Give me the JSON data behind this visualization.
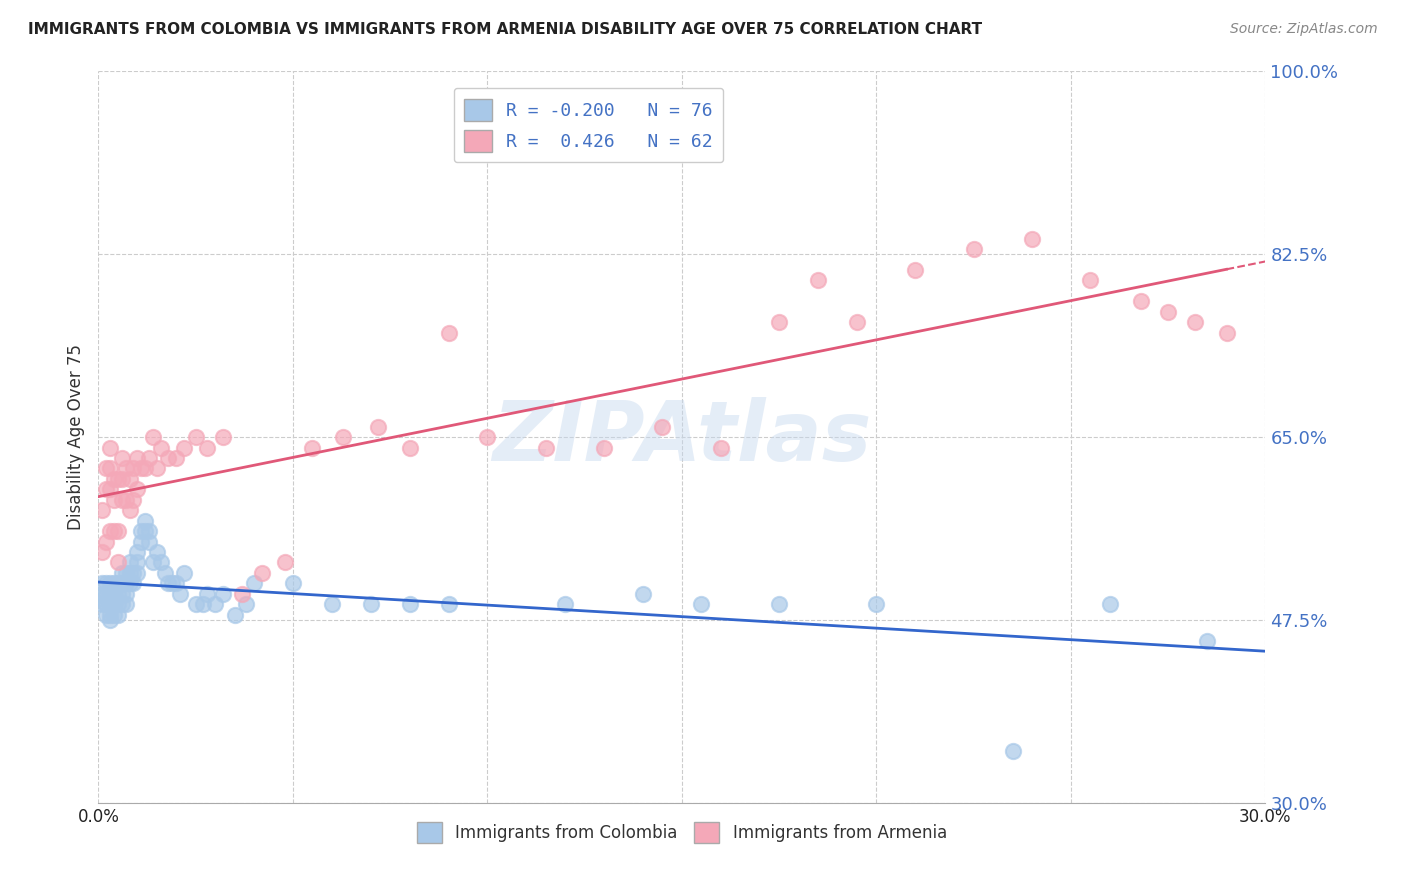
{
  "title": "IMMIGRANTS FROM COLOMBIA VS IMMIGRANTS FROM ARMENIA DISABILITY AGE OVER 75 CORRELATION CHART",
  "source": "Source: ZipAtlas.com",
  "ylabel": "Disability Age Over 75",
  "xmin": 0.0,
  "xmax": 0.3,
  "ymin": 0.3,
  "ymax": 1.0,
  "yticks": [
    0.3,
    0.475,
    0.65,
    0.825,
    1.0
  ],
  "ytick_labels": [
    "30.0%",
    "47.5%",
    "65.0%",
    "82.5%",
    "100.0%"
  ],
  "xtick_labels_ends": [
    "0.0%",
    "30.0%"
  ],
  "colombia_color": "#a8c8e8",
  "armenia_color": "#f4a8b8",
  "colombia_line_color": "#3366cc",
  "armenia_line_color": "#e05878",
  "colombia_R": -0.2,
  "colombia_N": 76,
  "armenia_R": 0.426,
  "armenia_N": 62,
  "legend_label_colombia": "Immigrants from Colombia",
  "legend_label_armenia": "Immigrants from Armenia",
  "watermark": "ZIPAtlas",
  "colombia_x": [
    0.001,
    0.001,
    0.001,
    0.002,
    0.002,
    0.002,
    0.002,
    0.002,
    0.002,
    0.003,
    0.003,
    0.003,
    0.003,
    0.003,
    0.003,
    0.004,
    0.004,
    0.004,
    0.004,
    0.004,
    0.005,
    0.005,
    0.005,
    0.005,
    0.006,
    0.006,
    0.006,
    0.006,
    0.007,
    0.007,
    0.007,
    0.007,
    0.008,
    0.008,
    0.008,
    0.009,
    0.009,
    0.01,
    0.01,
    0.01,
    0.011,
    0.011,
    0.012,
    0.012,
    0.013,
    0.013,
    0.014,
    0.015,
    0.016,
    0.017,
    0.018,
    0.019,
    0.02,
    0.021,
    0.022,
    0.025,
    0.027,
    0.028,
    0.03,
    0.032,
    0.035,
    0.038,
    0.04,
    0.05,
    0.06,
    0.07,
    0.08,
    0.09,
    0.12,
    0.14,
    0.155,
    0.175,
    0.2,
    0.235,
    0.26,
    0.285
  ],
  "colombia_y": [
    0.49,
    0.5,
    0.51,
    0.48,
    0.49,
    0.5,
    0.49,
    0.51,
    0.5,
    0.475,
    0.49,
    0.5,
    0.51,
    0.49,
    0.48,
    0.49,
    0.5,
    0.51,
    0.49,
    0.48,
    0.5,
    0.51,
    0.49,
    0.48,
    0.5,
    0.51,
    0.49,
    0.52,
    0.51,
    0.52,
    0.49,
    0.5,
    0.51,
    0.52,
    0.53,
    0.51,
    0.52,
    0.53,
    0.52,
    0.54,
    0.55,
    0.56,
    0.56,
    0.57,
    0.56,
    0.55,
    0.53,
    0.54,
    0.53,
    0.52,
    0.51,
    0.51,
    0.51,
    0.5,
    0.52,
    0.49,
    0.49,
    0.5,
    0.49,
    0.5,
    0.48,
    0.49,
    0.51,
    0.51,
    0.49,
    0.49,
    0.49,
    0.49,
    0.49,
    0.5,
    0.49,
    0.49,
    0.49,
    0.35,
    0.49,
    0.455
  ],
  "armenia_x": [
    0.001,
    0.001,
    0.002,
    0.002,
    0.002,
    0.003,
    0.003,
    0.003,
    0.003,
    0.004,
    0.004,
    0.004,
    0.005,
    0.005,
    0.005,
    0.006,
    0.006,
    0.006,
    0.007,
    0.007,
    0.008,
    0.008,
    0.009,
    0.009,
    0.01,
    0.01,
    0.011,
    0.012,
    0.013,
    0.014,
    0.015,
    0.016,
    0.018,
    0.02,
    0.022,
    0.025,
    0.028,
    0.032,
    0.037,
    0.042,
    0.048,
    0.055,
    0.063,
    0.072,
    0.08,
    0.09,
    0.1,
    0.115,
    0.13,
    0.145,
    0.16,
    0.175,
    0.185,
    0.195,
    0.21,
    0.225,
    0.24,
    0.255,
    0.268,
    0.275,
    0.282,
    0.29
  ],
  "armenia_y": [
    0.54,
    0.58,
    0.55,
    0.6,
    0.62,
    0.56,
    0.6,
    0.62,
    0.64,
    0.56,
    0.59,
    0.61,
    0.53,
    0.56,
    0.61,
    0.59,
    0.61,
    0.63,
    0.59,
    0.62,
    0.58,
    0.61,
    0.59,
    0.62,
    0.6,
    0.63,
    0.62,
    0.62,
    0.63,
    0.65,
    0.62,
    0.64,
    0.63,
    0.63,
    0.64,
    0.65,
    0.64,
    0.65,
    0.5,
    0.52,
    0.53,
    0.64,
    0.65,
    0.66,
    0.64,
    0.75,
    0.65,
    0.64,
    0.64,
    0.66,
    0.64,
    0.76,
    0.8,
    0.76,
    0.81,
    0.83,
    0.84,
    0.8,
    0.78,
    0.77,
    0.76,
    0.75
  ]
}
